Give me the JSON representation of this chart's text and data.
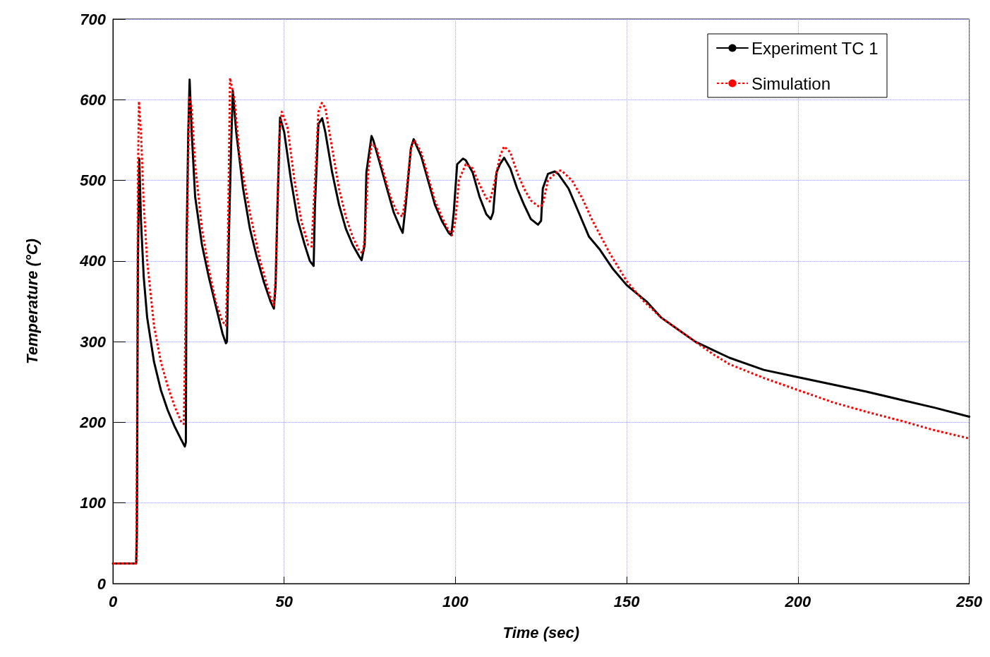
{
  "chart_data": {
    "type": "line",
    "xlabel": "Time (sec)",
    "ylabel": "Temperature (°C)",
    "xlim": [
      0,
      250
    ],
    "xticks": [
      0,
      50,
      100,
      150,
      200,
      250
    ],
    "ylim": [
      0,
      700
    ],
    "yticks": [
      0,
      100,
      200,
      300,
      400,
      500,
      600,
      700
    ],
    "grid": true,
    "legend": "top right",
    "marker": "none",
    "series": [
      {
        "name": "Experiment TC 1",
        "color": "#000000",
        "line_style": "solid",
        "x": [
          0,
          6.8,
          7.0,
          7.3,
          7.7,
          8.2,
          9,
          10,
          12,
          14,
          16,
          18,
          20,
          21,
          21.3,
          21.5,
          22,
          22.4,
          23,
          24,
          26,
          28,
          30,
          32,
          33,
          33.3,
          33.8,
          34.5,
          35,
          36,
          38,
          40,
          42,
          44,
          46,
          47,
          47.5,
          48,
          48.8,
          50,
          52,
          54,
          56,
          57.5,
          58.6,
          59,
          60,
          61.1,
          62,
          64,
          66,
          68,
          70,
          72,
          72.6,
          73.5,
          74,
          75.5,
          76,
          78,
          80,
          82,
          84,
          84.6,
          85.5,
          87,
          87.8,
          90,
          92,
          94,
          96,
          98,
          98.8,
          99.5,
          100.5,
          102.2,
          103,
          105,
          107,
          109,
          110.3,
          111,
          112,
          113,
          114.2,
          116,
          118,
          120,
          122,
          124.1,
          125,
          125.5,
          127,
          129,
          130,
          133,
          136,
          139,
          142,
          146,
          150,
          156,
          160,
          165,
          170,
          175,
          180,
          190,
          200,
          210,
          220,
          230,
          240,
          250
        ],
        "values": [
          25,
          25,
          60,
          400,
          527,
          450,
          380,
          330,
          275,
          240,
          215,
          195,
          178,
          170,
          175,
          420,
          560,
          625,
          560,
          480,
          420,
          380,
          345,
          310,
          298,
          300,
          420,
          540,
          611,
          560,
          490,
          440,
          405,
          375,
          350,
          341,
          370,
          460,
          578,
          560,
          500,
          450,
          420,
          400,
          394,
          470,
          570,
          577,
          560,
          510,
          470,
          440,
          420,
          405,
          401,
          420,
          510,
          555,
          550,
          520,
          490,
          460,
          440,
          435,
          470,
          540,
          551,
          530,
          500,
          470,
          450,
          435,
          432,
          460,
          520,
          527,
          525,
          510,
          480,
          458,
          452,
          460,
          510,
          520,
          528,
          515,
          490,
          470,
          452,
          445,
          450,
          490,
          508,
          511,
          508,
          490,
          460,
          430,
          415,
          390,
          370,
          349,
          330,
          315,
          300,
          290,
          280,
          265,
          256,
          247,
          238,
          228,
          218,
          207
        ]
      },
      {
        "name": "Simulation",
        "color": "#ff0000",
        "line_style": "dotted",
        "x": [
          0,
          6.8,
          7.0,
          7.3,
          7.6,
          8.2,
          9,
          10,
          12,
          14,
          16,
          18,
          20,
          20.7,
          21.5,
          22.3,
          23,
          24,
          26,
          28,
          30,
          32,
          33,
          33.5,
          34.2,
          35.5,
          37,
          40,
          43,
          46,
          47,
          47.5,
          48.5,
          49.3,
          51,
          53,
          55,
          57,
          58,
          58.5,
          60,
          61,
          62,
          64,
          66,
          68,
          70,
          72,
          73,
          73.5,
          74.5,
          75.5,
          77,
          79,
          81,
          83,
          84.5,
          85.5,
          87,
          88,
          90,
          92,
          94,
          96,
          98,
          99,
          100,
          101,
          103,
          105,
          107,
          109,
          110,
          111,
          113,
          114.2,
          116,
          118,
          120,
          122,
          124.5,
          125.5,
          127,
          130,
          131,
          134,
          137,
          140,
          145,
          150,
          155,
          160,
          165,
          170,
          175,
          180,
          190,
          200,
          210,
          220,
          230,
          240,
          250
        ],
        "values": [
          25,
          25,
          150,
          500,
          598,
          560,
          470,
          400,
          320,
          275,
          245,
          220,
          200,
          198,
          400,
          605,
          590,
          520,
          440,
          390,
          350,
          325,
          320,
          400,
          627,
          600,
          530,
          460,
          400,
          355,
          345,
          380,
          550,
          585,
          565,
          500,
          450,
          420,
          418,
          460,
          585,
          596,
          590,
          540,
          490,
          455,
          430,
          412,
          410,
          430,
          510,
          545,
          540,
          510,
          480,
          460,
          455,
          480,
          540,
          550,
          535,
          505,
          475,
          455,
          438,
          432,
          450,
          500,
          520,
          515,
          495,
          478,
          474,
          490,
          530,
          542,
          535,
          510,
          490,
          475,
          467,
          470,
          500,
          512,
          512,
          500,
          478,
          450,
          410,
          375,
          350,
          330,
          315,
          300,
          285,
          272,
          255,
          240,
          225,
          213,
          202,
          190,
          180
        ]
      }
    ]
  }
}
